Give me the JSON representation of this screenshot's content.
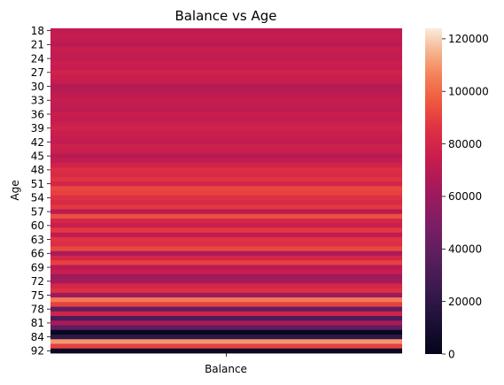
{
  "chart_data": {
    "type": "heatmap",
    "title": "Balance vs Age",
    "xlabel": "",
    "ylabel": "Age",
    "x_categories": [
      "Balance"
    ],
    "y_categories": [
      "18",
      "19",
      "20",
      "21",
      "22",
      "23",
      "24",
      "25",
      "26",
      "27",
      "28",
      "29",
      "30",
      "31",
      "32",
      "33",
      "34",
      "35",
      "36",
      "37",
      "38",
      "39",
      "40",
      "41",
      "42",
      "43",
      "44",
      "45",
      "46",
      "47",
      "48",
      "49",
      "50",
      "51",
      "52",
      "53",
      "54",
      "55",
      "56",
      "57",
      "58",
      "59",
      "60",
      "61",
      "62",
      "63",
      "64",
      "65",
      "66",
      "67",
      "68",
      "69",
      "70",
      "71",
      "72",
      "73",
      "74",
      "75",
      "76",
      "77",
      "78",
      "79",
      "80",
      "81",
      "82",
      "83",
      "84",
      "85",
      "88",
      "92"
    ],
    "y_tick_labels": [
      "18",
      "21",
      "24",
      "27",
      "30",
      "33",
      "36",
      "39",
      "42",
      "45",
      "48",
      "51",
      "54",
      "57",
      "60",
      "63",
      "66",
      "69",
      "72",
      "75",
      "78",
      "81",
      "84",
      "92"
    ],
    "values": [
      72000,
      74000,
      73000,
      70000,
      75000,
      73000,
      72000,
      76000,
      74000,
      78000,
      76000,
      74000,
      68000,
      70000,
      72000,
      74000,
      73000,
      71000,
      75000,
      73000,
      76000,
      78000,
      76000,
      74000,
      73000,
      77000,
      76000,
      69000,
      73000,
      78000,
      84000,
      82000,
      86000,
      80000,
      92000,
      90000,
      85000,
      82000,
      88000,
      70000,
      94000,
      80000,
      76000,
      88000,
      72000,
      86000,
      84000,
      92000,
      66000,
      80000,
      90000,
      70000,
      75000,
      60000,
      64000,
      80000,
      85000,
      60000,
      104000,
      90000,
      40000,
      78000,
      30000,
      65000,
      38000,
      3000,
      20000,
      110000,
      90000,
      4000
    ],
    "colorbar": {
      "min": 0,
      "max": 124000,
      "ticks": [
        "0",
        "20000",
        "40000",
        "60000",
        "80000",
        "100000",
        "120000"
      ],
      "tick_values": [
        0,
        20000,
        40000,
        60000,
        80000,
        100000,
        120000
      ]
    }
  }
}
